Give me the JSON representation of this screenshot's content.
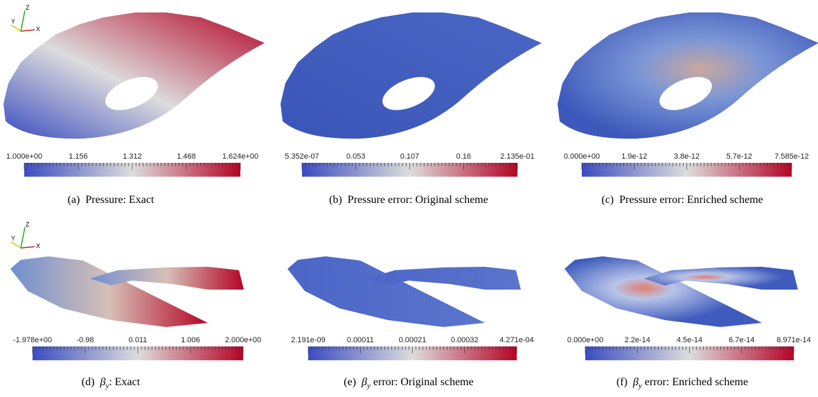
{
  "panels": [
    {
      "ticks": [
        "1.000e+00",
        "1.156",
        "1.312",
        "1.468",
        "1.624e+00"
      ],
      "caption": {
        "label": "(a)",
        "text": "Pressure: Exact"
      },
      "axes": [
        "Z",
        "Y",
        "X"
      ]
    },
    {
      "ticks": [
        "5.352e-07",
        "0.053",
        "0.107",
        "0.16",
        "2.135e-01"
      ],
      "caption": {
        "label": "(b)",
        "text": "Pressure error: Original scheme"
      }
    },
    {
      "ticks": [
        "0.000e+00",
        "1.9e-12",
        "3.8e-12",
        "5.7e-12",
        "7.585e-12"
      ],
      "caption": {
        "label": "(c)",
        "text": "Pressure error: Enriched scheme"
      }
    },
    {
      "ticks": [
        "-1.978e+00",
        "-0.98",
        "0.011",
        "1.006",
        "2.000e+00"
      ],
      "caption": {
        "label": "(d)",
        "symbol": "β",
        "subscript": "y",
        "text": ": Exact"
      },
      "axes": [
        "Z",
        "Y",
        "X"
      ]
    },
    {
      "ticks": [
        "2.191e-09",
        "0.00011",
        "0.00021",
        "0.00032",
        "4.271e-04"
      ],
      "caption": {
        "label": "(e)",
        "symbol": "β",
        "subscript": "y",
        "text": " error: Original scheme"
      }
    },
    {
      "ticks": [
        "0.000e+00",
        "2.2e-14",
        "4.5e-14",
        "6.7e-14",
        "8.971e-14"
      ],
      "caption": {
        "label": "(f)",
        "symbol": "β",
        "subscript": "y",
        "text": " error: Enriched scheme"
      }
    }
  ]
}
